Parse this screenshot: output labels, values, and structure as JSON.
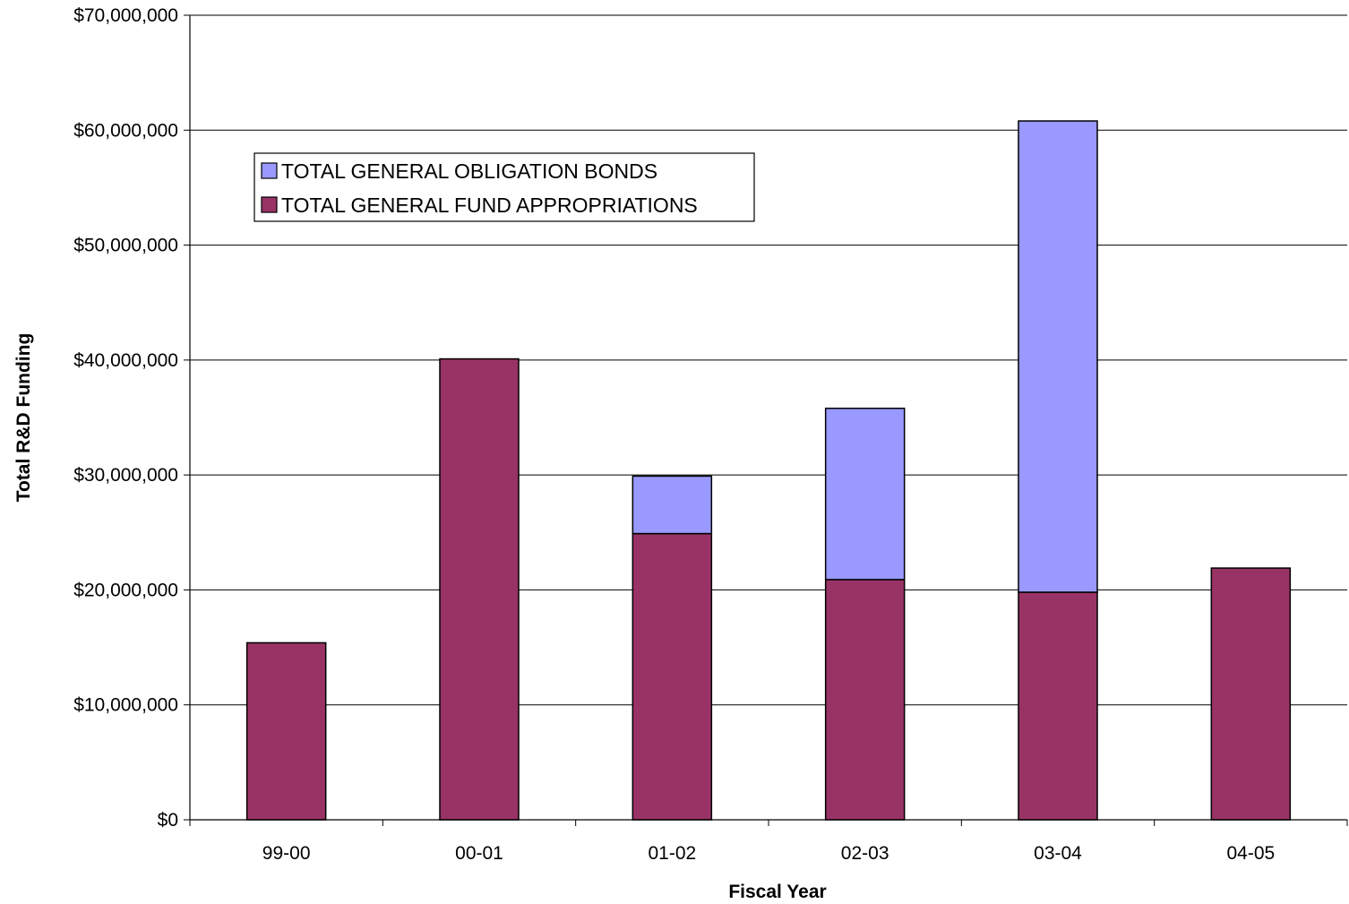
{
  "chart_data": {
    "type": "bar",
    "stacked": true,
    "title": "",
    "xlabel": "Fiscal Year",
    "ylabel": "Total R&D Funding",
    "categories": [
      "99-00",
      "00-01",
      "01-02",
      "02-03",
      "03-04",
      "04-05"
    ],
    "series": [
      {
        "name": "TOTAL GENERAL FUND APPROPRIATIONS",
        "color": "#993366",
        "values": [
          15400000,
          40100000,
          24900000,
          20900000,
          19800000,
          21900000
        ]
      },
      {
        "name": "TOTAL GENERAL OBLIGATION BONDS",
        "color": "#9999FF",
        "values": [
          0,
          0,
          5000000,
          14900000,
          41000000,
          0
        ]
      }
    ],
    "ylim": [
      0,
      70000000
    ],
    "yticks": [
      0,
      10000000,
      20000000,
      30000000,
      40000000,
      50000000,
      60000000,
      70000000
    ],
    "ytick_labels": [
      "$0",
      "$10,000,000",
      "$20,000,000",
      "$30,000,000",
      "$40,000,000",
      "$50,000,000",
      "$60,000,000",
      "$70,000,000"
    ],
    "grid": "horizontal",
    "legend_position": "top-left",
    "legend_order": [
      "TOTAL GENERAL OBLIGATION BONDS",
      "TOTAL GENERAL FUND APPROPRIATIONS"
    ]
  }
}
